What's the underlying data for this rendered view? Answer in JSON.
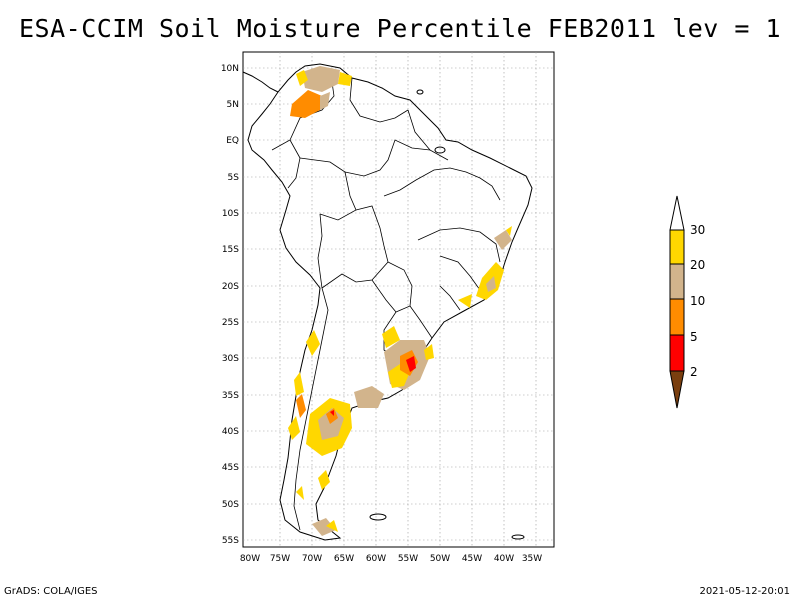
{
  "title": "ESA-CCIM Soil Moisture Percentile FEB2011 lev = 1",
  "footer": {
    "left": "GrADS: COLA/IGES",
    "right": "2021-05-12-20:01"
  },
  "map": {
    "region": "South America",
    "lat_labels": [
      "10N",
      "5N",
      "EQ",
      "5S",
      "10S",
      "15S",
      "20S",
      "25S",
      "30S",
      "35S",
      "40S",
      "45S",
      "50S",
      "55S"
    ],
    "lon_labels": [
      "80W",
      "75W",
      "70W",
      "65W",
      "60W",
      "55W",
      "50W",
      "45W",
      "40W",
      "35W"
    ],
    "grid": true
  },
  "colorbar": {
    "levels": [
      "2",
      "5",
      "10",
      "20",
      "30"
    ],
    "colors": [
      "#7a3f0f",
      "#ff0000",
      "#ff8c00",
      "#d2b48c",
      "#ffd700",
      "#ffffff"
    ]
  },
  "colors": {
    "brown": "#7a3f0f",
    "red": "#ff0000",
    "orange": "#ff8c00",
    "tan": "#d2b48c",
    "gold": "#ffd700"
  }
}
